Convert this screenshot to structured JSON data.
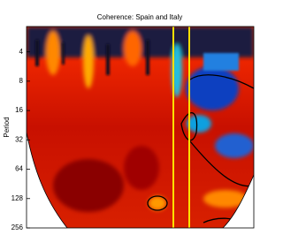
{
  "chart_data": {
    "type": "heatmap",
    "title": "Coherence: Spain and Italy",
    "ylabel": "Period",
    "yscale": "log2",
    "yinverted": true,
    "ylim": [
      2.2,
      256
    ],
    "yticks": [
      4,
      8,
      16,
      32,
      64,
      128,
      256
    ]
  }
}
